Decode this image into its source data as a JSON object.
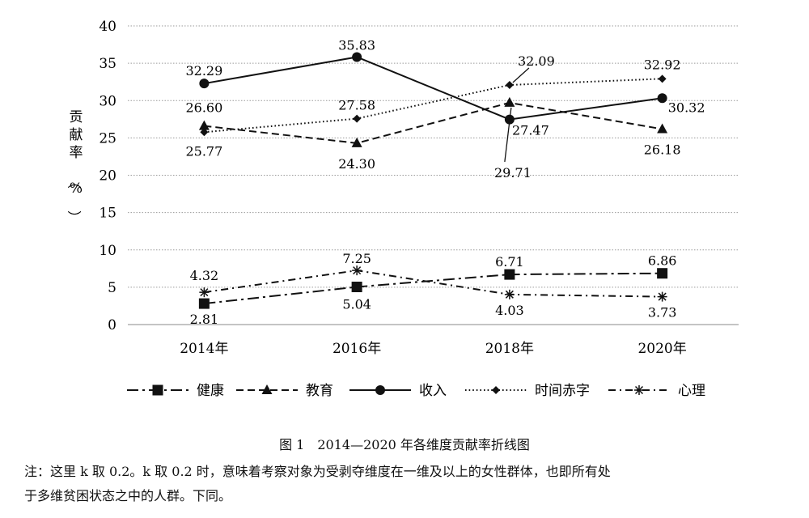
{
  "chart_data": {
    "type": "line",
    "title": "",
    "xlabel": "",
    "ylabel": "贡献率（%）",
    "ylim": [
      0,
      40
    ],
    "yticks": [
      0,
      5,
      10,
      15,
      20,
      25,
      30,
      35,
      40
    ],
    "categories": [
      "2014年",
      "2016年",
      "2018年",
      "2020年"
    ],
    "grid": "horizontal dotted",
    "legend_position": "bottom",
    "series": [
      {
        "name": "健康",
        "values": [
          2.81,
          5.04,
          6.71,
          6.86
        ],
        "value_labels": [
          "2.81",
          "5.04",
          "6.71",
          "6.86"
        ],
        "marker": "square",
        "dash": "long-dash-dot"
      },
      {
        "name": "教育",
        "values": [
          26.6,
          24.3,
          29.71,
          26.18
        ],
        "value_labels": [
          "26.60",
          "24.30",
          "29.71",
          "26.18"
        ],
        "marker": "triangle",
        "dash": "dashed"
      },
      {
        "name": "收入",
        "values": [
          32.29,
          35.83,
          27.47,
          30.32
        ],
        "value_labels": [
          "32.29",
          "35.83",
          "27.47",
          "30.32"
        ],
        "marker": "circle",
        "dash": "solid"
      },
      {
        "name": "时间赤字",
        "values": [
          25.77,
          27.58,
          32.09,
          32.92
        ],
        "value_labels": [
          "25.77",
          "27.58",
          "32.09",
          "32.92"
        ],
        "marker": "diamond",
        "dash": "dotted"
      },
      {
        "name": "心理",
        "values": [
          4.32,
          7.25,
          4.03,
          3.73
        ],
        "value_labels": [
          "4.32",
          "7.25",
          "4.03",
          "3.73"
        ],
        "marker": "asterisk",
        "dash": "dash-dot"
      }
    ]
  },
  "caption": "图 1　2014—2020 年各维度贡献率折线图",
  "note": {
    "line1": "注：这里 k 取 0.2。k 取 0.2 时，意味着考察对象为受剥夺维度在一维及以上的女性群体，也即所有处",
    "line2": "于多维贫困状态之中的人群。下同。"
  }
}
